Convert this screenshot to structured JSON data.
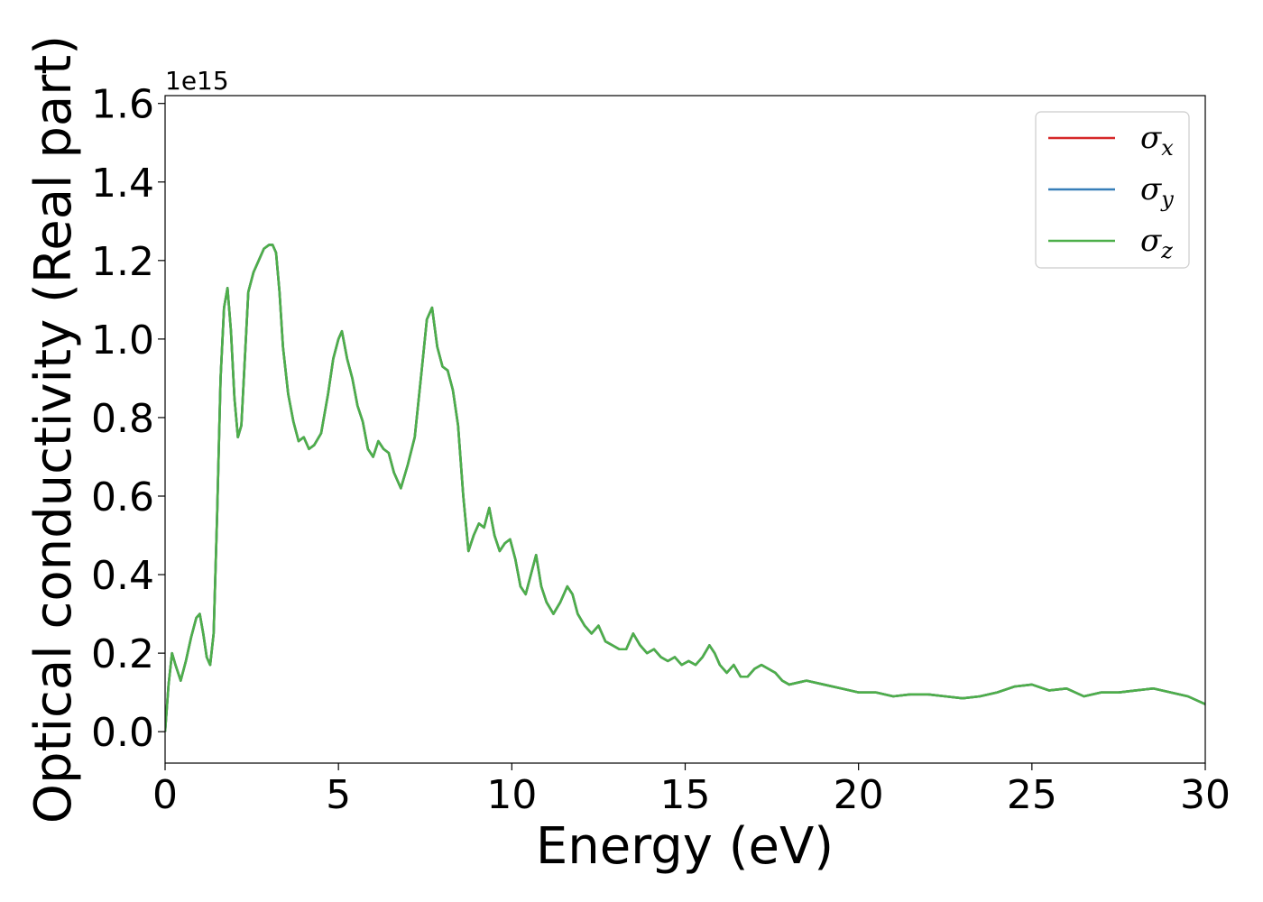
{
  "chart_data": {
    "type": "line",
    "xlabel": "Energy (eV)",
    "ylabel": "Optical conductivity (Real part)",
    "y_offset_text": "1e15",
    "xlim": [
      0,
      30
    ],
    "ylim": [
      -0.08,
      1.62
    ],
    "x_ticks": [
      0,
      5,
      10,
      15,
      20,
      25,
      30
    ],
    "x_tick_labels": [
      "0",
      "5",
      "10",
      "15",
      "20",
      "25",
      "30"
    ],
    "y_ticks": [
      0.0,
      0.2,
      0.4,
      0.6,
      0.8,
      1.0,
      1.2,
      1.4,
      1.6
    ],
    "y_tick_labels": [
      "0.0",
      "0.2",
      "0.4",
      "0.6",
      "0.8",
      "1.0",
      "1.2",
      "1.4",
      "1.6"
    ],
    "grid": false,
    "legend_position": "top-right",
    "series": [
      {
        "name": "σx",
        "symbol": "σ",
        "sub": "x",
        "color": "#d62728",
        "follows": "σz"
      },
      {
        "name": "σy",
        "symbol": "σ",
        "sub": "y",
        "color": "#377eb8",
        "follows": "σz"
      },
      {
        "name": "σz",
        "symbol": "σ",
        "sub": "z",
        "color": "#4daf4a",
        "x": [
          0,
          0.1,
          0.2,
          0.3,
          0.45,
          0.6,
          0.75,
          0.9,
          1.0,
          1.1,
          1.2,
          1.3,
          1.4,
          1.5,
          1.6,
          1.7,
          1.8,
          1.9,
          2.0,
          2.1,
          2.2,
          2.3,
          2.4,
          2.55,
          2.7,
          2.85,
          3.0,
          3.1,
          3.2,
          3.3,
          3.4,
          3.55,
          3.7,
          3.85,
          4.0,
          4.15,
          4.3,
          4.5,
          4.7,
          4.85,
          5.0,
          5.1,
          5.25,
          5.4,
          5.55,
          5.7,
          5.85,
          6.0,
          6.15,
          6.3,
          6.45,
          6.6,
          6.8,
          7.0,
          7.2,
          7.4,
          7.55,
          7.7,
          7.85,
          8.0,
          8.15,
          8.3,
          8.45,
          8.6,
          8.75,
          8.9,
          9.05,
          9.2,
          9.35,
          9.5,
          9.65,
          9.8,
          9.95,
          10.1,
          10.25,
          10.4,
          10.55,
          10.7,
          10.85,
          11.0,
          11.2,
          11.4,
          11.6,
          11.75,
          11.9,
          12.1,
          12.3,
          12.5,
          12.7,
          12.9,
          13.1,
          13.3,
          13.5,
          13.7,
          13.9,
          14.1,
          14.3,
          14.5,
          14.7,
          14.9,
          15.1,
          15.3,
          15.5,
          15.7,
          15.85,
          16.0,
          16.2,
          16.4,
          16.6,
          16.8,
          17.0,
          17.2,
          17.4,
          17.6,
          17.8,
          18.0,
          18.5,
          19.0,
          19.5,
          20.0,
          20.5,
          21.0,
          21.5,
          22.0,
          22.5,
          23.0,
          23.5,
          24.0,
          24.5,
          25.0,
          25.5,
          26.0,
          26.5,
          27.0,
          27.5,
          28.0,
          28.5,
          29.0,
          29.5,
          30.0
        ],
        "y": [
          0.0,
          0.12,
          0.2,
          0.17,
          0.13,
          0.18,
          0.24,
          0.29,
          0.3,
          0.25,
          0.19,
          0.17,
          0.25,
          0.55,
          0.9,
          1.08,
          1.13,
          1.02,
          0.85,
          0.75,
          0.78,
          0.95,
          1.12,
          1.17,
          1.2,
          1.23,
          1.24,
          1.24,
          1.22,
          1.12,
          0.98,
          0.86,
          0.79,
          0.74,
          0.75,
          0.72,
          0.73,
          0.76,
          0.86,
          0.95,
          1.0,
          1.02,
          0.95,
          0.9,
          0.83,
          0.79,
          0.72,
          0.7,
          0.74,
          0.72,
          0.71,
          0.66,
          0.62,
          0.68,
          0.75,
          0.92,
          1.05,
          1.08,
          0.98,
          0.93,
          0.92,
          0.87,
          0.78,
          0.6,
          0.46,
          0.5,
          0.53,
          0.52,
          0.57,
          0.5,
          0.46,
          0.48,
          0.49,
          0.44,
          0.37,
          0.35,
          0.4,
          0.45,
          0.37,
          0.33,
          0.3,
          0.33,
          0.37,
          0.35,
          0.3,
          0.27,
          0.25,
          0.27,
          0.23,
          0.22,
          0.21,
          0.21,
          0.25,
          0.22,
          0.2,
          0.21,
          0.19,
          0.18,
          0.19,
          0.17,
          0.18,
          0.17,
          0.19,
          0.22,
          0.2,
          0.17,
          0.15,
          0.17,
          0.14,
          0.14,
          0.16,
          0.17,
          0.16,
          0.15,
          0.13,
          0.12,
          0.13,
          0.12,
          0.11,
          0.1,
          0.1,
          0.09,
          0.095,
          0.095,
          0.09,
          0.085,
          0.09,
          0.1,
          0.115,
          0.12,
          0.105,
          0.11,
          0.09,
          0.1,
          0.1,
          0.105,
          0.11,
          0.1,
          0.09,
          0.07
        ]
      }
    ]
  }
}
